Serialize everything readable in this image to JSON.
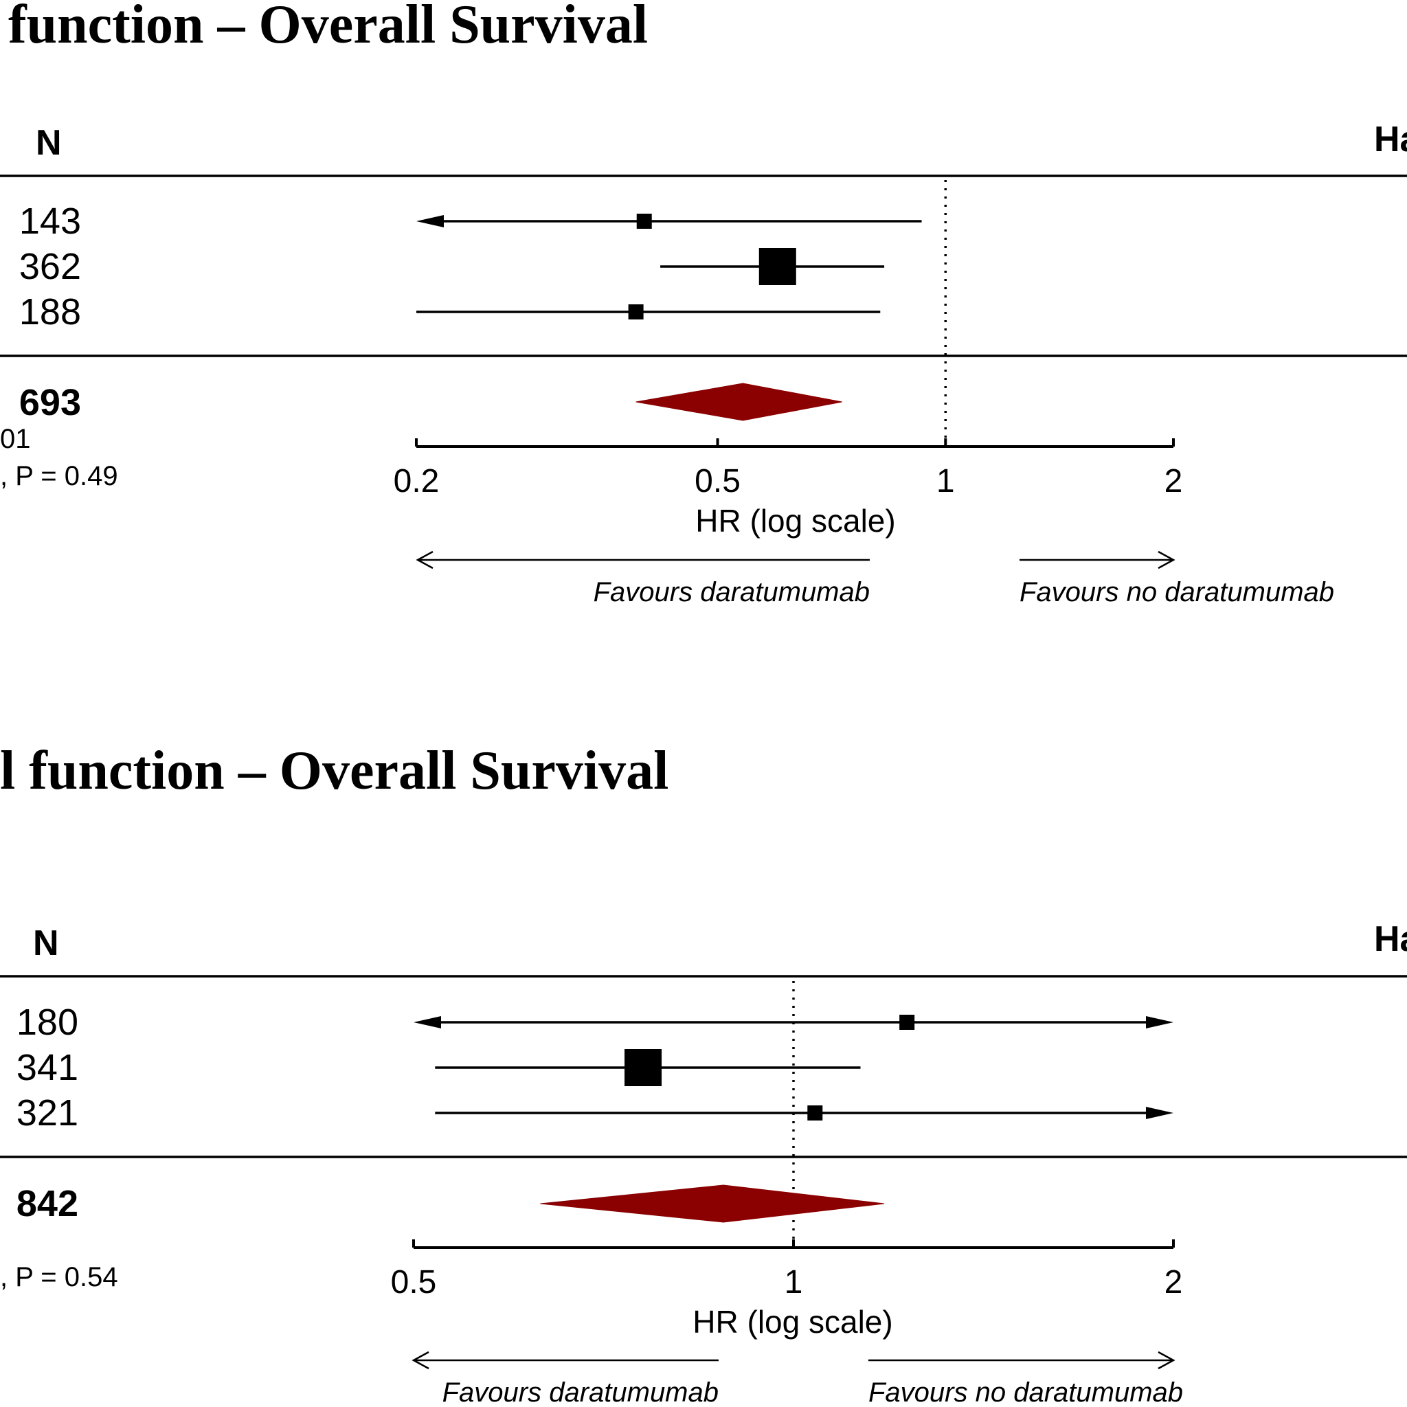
{
  "chart_data": [
    {
      "type": "forest",
      "title": "function – Overall Survival",
      "header_n": "N",
      "header_right": "Ha",
      "xlabel": "HR (log scale)",
      "xscale": "log",
      "xlim": [
        0.2,
        2
      ],
      "ticks": [
        0.2,
        0.5,
        1,
        2
      ],
      "tick_labels": [
        "0.2",
        "0.5",
        "1",
        "2"
      ],
      "reference_line": 1,
      "favours_left": "Favours daratumumab",
      "favours_right": "Favours no daratumumab",
      "rows": [
        {
          "n": "143",
          "hr": 0.4,
          "lower": 0.2,
          "upper": 0.93,
          "lower_truncated": true,
          "upper_truncated": false,
          "box": "small"
        },
        {
          "n": "362",
          "hr": 0.6,
          "lower": 0.42,
          "upper": 0.83,
          "lower_truncated": false,
          "upper_truncated": false,
          "box": "large"
        },
        {
          "n": "188",
          "hr": 0.39,
          "lower": 0.2,
          "upper": 0.82,
          "lower_truncated": false,
          "upper_truncated": false,
          "box": "small"
        }
      ],
      "overall": {
        "n": "693",
        "hr": 0.54,
        "lower": 0.39,
        "upper": 0.73
      },
      "footnote_1": "01",
      "footnote_2": ", P = 0.49"
    },
    {
      "type": "forest",
      "title": "l function – Overall Survival",
      "header_n": "N",
      "header_right": "Ha",
      "xlabel": "HR (log scale)",
      "xscale": "log",
      "xlim": [
        0.5,
        2
      ],
      "ticks": [
        0.5,
        1,
        2
      ],
      "tick_labels": [
        "0.5",
        "1",
        "2"
      ],
      "reference_line": 1,
      "favours_left": "Favours daratumumab",
      "favours_right": "Favours no daratumumab",
      "rows": [
        {
          "n": "180",
          "hr": 1.23,
          "lower": 0.5,
          "upper": 2,
          "lower_truncated": true,
          "upper_truncated": true,
          "box": "small"
        },
        {
          "n": "341",
          "hr": 0.76,
          "lower": 0.52,
          "upper": 1.13,
          "lower_truncated": false,
          "upper_truncated": false,
          "box": "large"
        },
        {
          "n": "321",
          "hr": 1.04,
          "lower": 0.52,
          "upper": 2,
          "lower_truncated": false,
          "upper_truncated": true,
          "box": "small"
        }
      ],
      "overall": {
        "n": "842",
        "hr": 0.88,
        "lower": 0.63,
        "upper": 1.18
      },
      "footnote_1": "",
      "footnote_2": ", P = 0.54"
    }
  ]
}
